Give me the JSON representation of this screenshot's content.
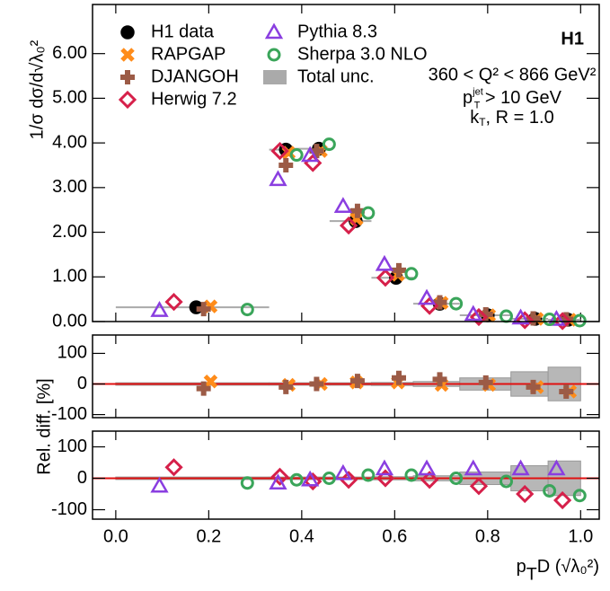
{
  "chart_data": [
    {
      "type": "scatter",
      "title": "H1",
      "ylabel": "1/σ dσ/d√λ₀²",
      "annotations": [
        "360 < Q² < 866 GeV²",
        {
          "main": "p",
          "sub": "T",
          "sup": "jet",
          "rest": " > 10 GeV"
        },
        {
          "main": "k",
          "sub": "T",
          "rest": ", R = 1.0"
        }
      ],
      "xlim": [
        -0.05,
        1.04
      ],
      "xticks": [
        0,
        0.2,
        0.4,
        0.6,
        0.8,
        1.0
      ],
      "ylim": [
        0,
        7.1
      ],
      "yticks": [
        {
          "value": 0,
          "label": "0.00"
        },
        {
          "value": 1,
          "label": "1.00"
        },
        {
          "value": 2,
          "label": "2.00"
        },
        {
          "value": 3,
          "label": "3.00"
        },
        {
          "value": 4,
          "label": "4.00"
        },
        {
          "value": 5,
          "label": "5.00"
        },
        {
          "value": 6,
          "label": "6.00"
        }
      ],
      "bins": [
        0.0,
        0.33,
        0.38,
        0.46,
        0.55,
        0.64,
        0.74,
        0.85,
        0.93,
        1.0
      ],
      "band": {
        "name": "Total unc.",
        "color": "#aaaaaa"
      },
      "series": [
        {
          "name": "H1 data",
          "marker": "dot",
          "color": "#000000",
          "x": [
            0.173,
            0.366,
            0.437,
            0.516,
            0.603,
            0.697,
            0.8,
            0.902,
            0.973
          ],
          "values": [
            0.32,
            3.85,
            3.87,
            2.25,
            0.98,
            0.4,
            0.14,
            0.06,
            0.04
          ]
        },
        {
          "name": "RAPGAP",
          "marker": "x",
          "color": "#ff8c1a",
          "x": [
            0.204,
            0.372,
            0.441,
            0.518,
            0.607,
            0.701,
            0.803,
            0.906,
            0.977
          ],
          "values": [
            0.34,
            3.78,
            3.82,
            2.3,
            1.05,
            0.42,
            0.14,
            0.06,
            0.04
          ]
        },
        {
          "name": "DJANGOH",
          "marker": "plus",
          "color": "#9c5b46",
          "x": [
            0.189,
            0.366,
            0.432,
            0.52,
            0.609,
            0.697,
            0.796,
            0.898,
            0.969
          ],
          "values": [
            0.28,
            3.5,
            3.82,
            2.48,
            1.15,
            0.43,
            0.16,
            0.07,
            0.05
          ]
        },
        {
          "name": "Herwig 7.2",
          "marker": "diamond",
          "color": "#d6204a",
          "x": [
            0.125,
            0.353,
            0.424,
            0.501,
            0.58,
            0.675,
            0.781,
            0.88,
            0.961
          ],
          "values": [
            0.44,
            3.82,
            3.55,
            2.15,
            0.98,
            0.35,
            0.1,
            0.03,
            0.01
          ]
        },
        {
          "name": "Pythia 8.3",
          "marker": "triangle",
          "color": "#8a3ee0",
          "x": [
            0.094,
            0.349,
            0.418,
            0.489,
            0.578,
            0.669,
            0.769,
            0.871,
            0.948
          ],
          "values": [
            0.25,
            3.18,
            3.72,
            2.58,
            1.28,
            0.52,
            0.16,
            0.08,
            0.05
          ]
        },
        {
          "name": "Sherpa 3.0 NLO",
          "marker": "circle",
          "color": "#3aa55a",
          "x": [
            0.283,
            0.389,
            0.459,
            0.543,
            0.636,
            0.732,
            0.84,
            0.933,
            0.998
          ],
          "values": [
            0.27,
            3.73,
            3.97,
            2.43,
            1.07,
            0.4,
            0.12,
            0.05,
            0.02
          ]
        }
      ]
    },
    {
      "type": "scatter",
      "ylabel": "Rel. diff. [%]",
      "xlim": [
        -0.05,
        1.04
      ],
      "xticks": [
        0,
        0.2,
        0.4,
        0.6,
        0.8,
        1.0
      ],
      "ylim": [
        -110,
        160
      ],
      "yticks": [
        -100,
        0,
        100
      ],
      "hline": 0,
      "hline_color": "#e01010",
      "bins": [
        0.0,
        0.33,
        0.38,
        0.46,
        0.55,
        0.64,
        0.74,
        0.85,
        0.93,
        1.0
      ],
      "total_unc": [
        4,
        4,
        4,
        4,
        5,
        8,
        20,
        40,
        55
      ],
      "band_color": "#aaaaaa",
      "series": [
        {
          "marker": "x",
          "color": "#ff8c1a",
          "x": [
            0.204,
            0.372,
            0.441,
            0.518,
            0.607,
            0.701,
            0.803,
            0.906,
            0.977
          ],
          "values": [
            8,
            -3,
            0,
            5,
            5,
            -3,
            -3,
            -10,
            -25
          ]
        },
        {
          "marker": "plus",
          "color": "#9c5b46",
          "x": [
            0.189,
            0.366,
            0.432,
            0.52,
            0.609,
            0.697,
            0.796,
            0.898,
            0.969
          ],
          "values": [
            -15,
            -10,
            0,
            10,
            20,
            15,
            5,
            -10,
            -25
          ]
        }
      ]
    },
    {
      "type": "scatter",
      "xlabel": {
        "main": "p",
        "sub": "T",
        "rest": "D (√λ₀²)"
      },
      "xlim": [
        -0.05,
        1.04
      ],
      "xticks": [
        {
          "value": 0,
          "label": "0.0"
        },
        {
          "value": 0.2,
          "label": "0.2"
        },
        {
          "value": 0.4,
          "label": "0.4"
        },
        {
          "value": 0.6,
          "label": "0.6"
        },
        {
          "value": 0.8,
          "label": "0.8"
        },
        {
          "value": 1.0,
          "label": "1.0"
        }
      ],
      "ylim": [
        -130,
        150
      ],
      "yticks": [
        -100,
        0,
        100
      ],
      "hline": 0,
      "hline_color": "#e01010",
      "bins": [
        0.0,
        0.33,
        0.38,
        0.46,
        0.55,
        0.64,
        0.74,
        0.85,
        0.93,
        1.0
      ],
      "total_unc": [
        4,
        4,
        4,
        4,
        5,
        8,
        20,
        40,
        55
      ],
      "band_color": "#aaaaaa",
      "series": [
        {
          "marker": "diamond",
          "color": "#d6204a",
          "x": [
            0.125,
            0.353,
            0.424,
            0.501,
            0.58,
            0.675,
            0.781,
            0.88,
            0.961
          ],
          "values": [
            35,
            5,
            -10,
            -5,
            0,
            -5,
            -25,
            -50,
            -70
          ]
        },
        {
          "marker": "triangle",
          "color": "#8a3ee0",
          "x": [
            0.094,
            0.349,
            0.418,
            0.489,
            0.578,
            0.669,
            0.769,
            0.871,
            0.948
          ],
          "values": [
            -25,
            -15,
            -5,
            15,
            30,
            30,
            30,
            30,
            30
          ]
        },
        {
          "marker": "circle",
          "color": "#3aa55a",
          "x": [
            0.283,
            0.389,
            0.459,
            0.543,
            0.636,
            0.732,
            0.84,
            0.933,
            0.998
          ],
          "values": [
            -15,
            -5,
            0,
            10,
            10,
            0,
            -10,
            -40,
            -55
          ]
        }
      ]
    }
  ]
}
